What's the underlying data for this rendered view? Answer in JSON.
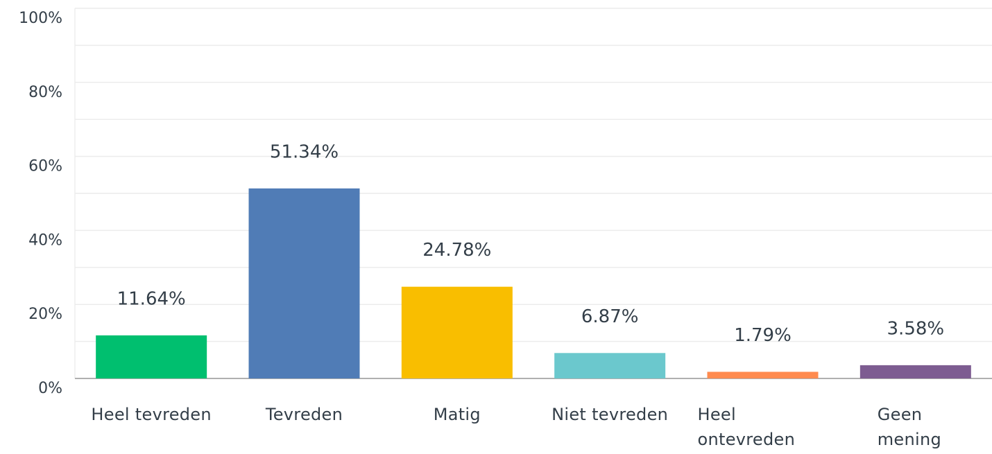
{
  "chart_data": {
    "type": "bar",
    "categories": [
      "Heel tevreden",
      "Tevreden",
      "Matig",
      "Niet tevreden",
      "Heel ontevreden",
      "Geen mening"
    ],
    "values": [
      11.64,
      51.34,
      24.78,
      6.87,
      1.79,
      3.58
    ],
    "value_labels": [
      "11.64%",
      "51.34%",
      "24.78%",
      "6.87%",
      "1.79%",
      "3.58%"
    ],
    "colors": [
      "#00bf6f",
      "#507cb6",
      "#f9be00",
      "#6bc8cd",
      "#ff8b4f",
      "#7d5c91"
    ],
    "ylim": [
      0,
      100
    ],
    "yticks": [
      {
        "value": 0,
        "label": "0%"
      },
      {
        "value": 20,
        "label": "20%"
      },
      {
        "value": 40,
        "label": "40%"
      },
      {
        "value": 60,
        "label": "60%"
      },
      {
        "value": 80,
        "label": "80%"
      },
      {
        "value": 100,
        "label": "100%"
      }
    ],
    "minor_yticks": [
      10,
      30,
      50,
      70,
      90
    ],
    "grid": true
  }
}
